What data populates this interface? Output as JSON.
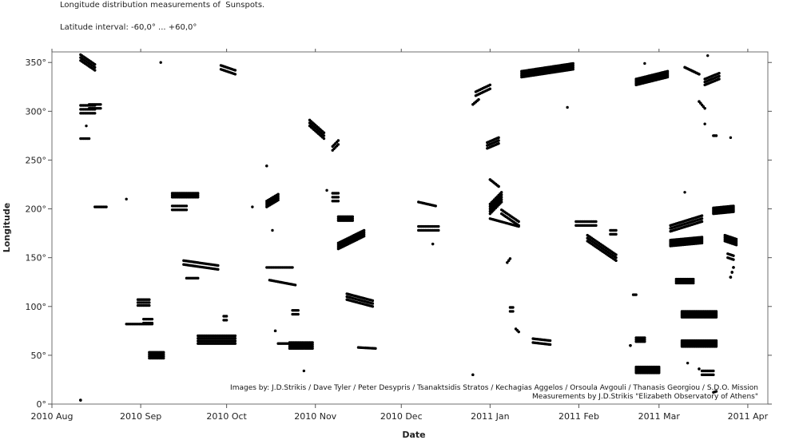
{
  "header": {
    "title": "Longitude distribution measurements of  Sunspots.",
    "subtitle": "Latitude interval: -60,0° ... +60,0°"
  },
  "credits": {
    "line1": "Images by: J.D.Strikis  /  Dave Tyler  /  Peter Desypris  /  Tsanaktsidis Stratos  /  Kechagias Aggelos  /  Orsoula Avgouli  /  Thanasis Georgiou  /  S.D.O. Mission",
    "line2": "Measurements by J.D.Strikis \"Elizabeth Observatory of Athens\""
  },
  "chart_data": {
    "type": "scatter",
    "title": "Longitude distribution measurements of  Sunspots.",
    "subtitle": "Latitude interval: -60,0° ... +60,0°",
    "xlabel": "Date",
    "ylabel": "Longitude",
    "xlim": [
      "2010-08-01",
      "2011-04-08"
    ],
    "ylim": [
      0,
      360
    ],
    "x_ticks": [
      {
        "date": "2010-08-01",
        "label": "2010 Aug"
      },
      {
        "date": "2010-09-01",
        "label": "2010 Sep"
      },
      {
        "date": "2010-10-01",
        "label": "2010 Oct"
      },
      {
        "date": "2010-11-01",
        "label": "2010 Nov"
      },
      {
        "date": "2010-12-01",
        "label": "2010 Dec"
      },
      {
        "date": "2011-01-01",
        "label": "2011 Jan"
      },
      {
        "date": "2011-02-01",
        "label": "2011 Feb"
      },
      {
        "date": "2011-03-01",
        "label": "2011 Mar"
      },
      {
        "date": "2011-04-01",
        "label": "2011 Apr"
      }
    ],
    "y_ticks": [
      {
        "value": 0,
        "label": "0°"
      },
      {
        "value": 50,
        "label": "50°"
      },
      {
        "value": 100,
        "label": "100°"
      },
      {
        "value": 150,
        "label": "150°"
      },
      {
        "value": 200,
        "label": "200°"
      },
      {
        "value": 250,
        "label": "250°"
      },
      {
        "value": 300,
        "label": "300°"
      },
      {
        "value": 350,
        "label": "350°"
      }
    ],
    "grid": false,
    "marker_color": "#000000",
    "groups": [
      {
        "start": "2010-08-11",
        "end": "2010-08-16",
        "from": 355,
        "to": 345,
        "rows": 3,
        "spread": 3
      },
      {
        "start": "2010-08-11",
        "end": "2010-08-16",
        "from": 302,
        "to": 302,
        "rows": 3,
        "spread": 4
      },
      {
        "start": "2010-08-14",
        "end": "2010-08-18",
        "from": 305,
        "to": 305,
        "rows": 2,
        "spread": 2
      },
      {
        "start": "2010-08-11",
        "end": "2010-08-14",
        "from": 272,
        "to": 272,
        "rows": 1,
        "spread": 0
      },
      {
        "start": "2010-08-13",
        "end": "2010-08-13",
        "from": 285,
        "to": 285,
        "rows": 1,
        "spread": 0
      },
      {
        "start": "2010-08-11",
        "end": "2010-08-11",
        "from": 4,
        "to": 19,
        "rows": 4,
        "spread": 0
      },
      {
        "start": "2010-08-16",
        "end": "2010-08-20",
        "from": 202,
        "to": 202,
        "rows": 1,
        "spread": 0
      },
      {
        "start": "2010-08-27",
        "end": "2010-08-27",
        "from": 210,
        "to": 210,
        "rows": 1,
        "spread": 0
      },
      {
        "start": "2010-08-27",
        "end": "2010-09-05",
        "from": 82,
        "to": 82,
        "rows": 1,
        "spread": 0
      },
      {
        "start": "2010-08-31",
        "end": "2010-09-04",
        "from": 104,
        "to": 104,
        "rows": 3,
        "spread": 3
      },
      {
        "start": "2010-09-02",
        "end": "2010-09-05",
        "from": 85,
        "to": 85,
        "rows": 2,
        "spread": 2
      },
      {
        "start": "2010-09-04",
        "end": "2010-09-09",
        "from": 50,
        "to": 50,
        "rows": 4,
        "spread": 3
      },
      {
        "start": "2010-09-08",
        "end": "2010-09-08",
        "from": 350,
        "to": 350,
        "rows": 1,
        "spread": 0
      },
      {
        "start": "2010-09-12",
        "end": "2010-09-21",
        "from": 214,
        "to": 214,
        "rows": 3,
        "spread": 2
      },
      {
        "start": "2010-09-12",
        "end": "2010-09-17",
        "from": 201,
        "to": 201,
        "rows": 2,
        "spread": 2
      },
      {
        "start": "2010-09-16",
        "end": "2010-09-28",
        "from": 145,
        "to": 140,
        "rows": 2,
        "spread": 2
      },
      {
        "start": "2010-09-17",
        "end": "2010-09-21",
        "from": 129,
        "to": 129,
        "rows": 1,
        "spread": 0
      },
      {
        "start": "2010-09-21",
        "end": "2010-10-04",
        "from": 66,
        "to": 66,
        "rows": 4,
        "spread": 4
      },
      {
        "start": "2010-09-30",
        "end": "2010-10-01",
        "from": 88,
        "to": 88,
        "rows": 2,
        "spread": 2
      },
      {
        "start": "2010-09-29",
        "end": "2010-10-04",
        "from": 345,
        "to": 340,
        "rows": 2,
        "spread": 2
      },
      {
        "start": "2010-10-10",
        "end": "2010-10-10",
        "from": 202,
        "to": 202,
        "rows": 1,
        "spread": 0
      },
      {
        "start": "2010-10-15",
        "end": "2010-10-19",
        "from": 205,
        "to": 212,
        "rows": 4,
        "spread": 3
      },
      {
        "start": "2010-10-15",
        "end": "2010-10-15",
        "from": 244,
        "to": 247,
        "rows": 2,
        "spread": 0
      },
      {
        "start": "2010-10-17",
        "end": "2010-10-17",
        "from": 178,
        "to": 178,
        "rows": 1,
        "spread": 0
      },
      {
        "start": "2010-10-15",
        "end": "2010-10-24",
        "from": 140,
        "to": 140,
        "rows": 1,
        "spread": 0
      },
      {
        "start": "2010-10-16",
        "end": "2010-10-25",
        "from": 127,
        "to": 122,
        "rows": 1,
        "spread": 0
      },
      {
        "start": "2010-10-18",
        "end": "2010-10-18",
        "from": 75,
        "to": 94,
        "rows": 2,
        "spread": 0
      },
      {
        "start": "2010-10-19",
        "end": "2010-10-23",
        "from": 62,
        "to": 62,
        "rows": 1,
        "spread": 0
      },
      {
        "start": "2010-10-24",
        "end": "2010-10-26",
        "from": 94,
        "to": 94,
        "rows": 2,
        "spread": 2
      },
      {
        "start": "2010-10-23",
        "end": "2010-10-31",
        "from": 60,
        "to": 60,
        "rows": 4,
        "spread": 3
      },
      {
        "start": "2010-10-28",
        "end": "2010-10-28",
        "from": 34,
        "to": 34,
        "rows": 1,
        "spread": 0
      },
      {
        "start": "2010-10-30",
        "end": "2010-11-04",
        "from": 288,
        "to": 275,
        "rows": 3,
        "spread": 3
      },
      {
        "start": "2010-11-05",
        "end": "2010-11-05",
        "from": 219,
        "to": 219,
        "rows": 1,
        "spread": 0
      },
      {
        "start": "2010-11-07",
        "end": "2010-11-09",
        "from": 262,
        "to": 268,
        "rows": 2,
        "spread": 2
      },
      {
        "start": "2010-11-07",
        "end": "2010-11-09",
        "from": 212,
        "to": 212,
        "rows": 3,
        "spread": 4
      },
      {
        "start": "2010-11-09",
        "end": "2010-11-14",
        "from": 190,
        "to": 190,
        "rows": 3,
        "spread": 2
      },
      {
        "start": "2010-11-09",
        "end": "2010-11-18",
        "from": 162,
        "to": 175,
        "rows": 4,
        "spread": 3
      },
      {
        "start": "2010-11-12",
        "end": "2010-11-21",
        "from": 110,
        "to": 103,
        "rows": 3,
        "spread": 3
      },
      {
        "start": "2010-11-16",
        "end": "2010-11-22",
        "from": 58,
        "to": 57,
        "rows": 1,
        "spread": 0
      },
      {
        "start": "2010-12-07",
        "end": "2010-12-13",
        "from": 207,
        "to": 203,
        "rows": 1,
        "spread": 0
      },
      {
        "start": "2010-12-07",
        "end": "2010-12-14",
        "from": 180,
        "to": 180,
        "rows": 2,
        "spread": 2
      },
      {
        "start": "2010-12-12",
        "end": "2010-12-12",
        "from": 164,
        "to": 168,
        "rows": 2,
        "spread": 0
      },
      {
        "start": "2010-12-26",
        "end": "2010-12-26",
        "from": 30,
        "to": 33,
        "rows": 2,
        "spread": 0
      },
      {
        "start": "2010-12-26",
        "end": "2010-12-28",
        "from": 307,
        "to": 312,
        "rows": 2,
        "spread": 0
      },
      {
        "start": "2010-12-27",
        "end": "2011-01-01",
        "from": 318,
        "to": 325,
        "rows": 2,
        "spread": 2
      },
      {
        "start": "2010-12-31",
        "end": "2011-01-04",
        "from": 265,
        "to": 270,
        "rows": 3,
        "spread": 3
      },
      {
        "start": "2011-01-01",
        "end": "2011-01-05",
        "from": 200,
        "to": 212,
        "rows": 5,
        "spread": 5
      },
      {
        "start": "2011-01-01",
        "end": "2011-01-04",
        "from": 230,
        "to": 223,
        "rows": 2,
        "spread": 0
      },
      {
        "start": "2011-01-01",
        "end": "2011-01-11",
        "from": 190,
        "to": 182,
        "rows": 1,
        "spread": 0
      },
      {
        "start": "2011-01-05",
        "end": "2011-01-11",
        "from": 197,
        "to": 185,
        "rows": 2,
        "spread": 2
      },
      {
        "start": "2011-01-07",
        "end": "2011-01-08",
        "from": 145,
        "to": 149,
        "rows": 2,
        "spread": 0
      },
      {
        "start": "2011-01-08",
        "end": "2011-01-09",
        "from": 97,
        "to": 97,
        "rows": 2,
        "spread": 2
      },
      {
        "start": "2011-01-10",
        "end": "2011-01-11",
        "from": 77,
        "to": 74,
        "rows": 2,
        "spread": 0
      },
      {
        "start": "2011-01-12",
        "end": "2011-01-30",
        "from": 338,
        "to": 346,
        "rows": 4,
        "spread": 3
      },
      {
        "start": "2011-01-16",
        "end": "2011-01-22",
        "from": 65,
        "to": 63,
        "rows": 2,
        "spread": 2
      },
      {
        "start": "2011-01-28",
        "end": "2011-01-28",
        "from": 304,
        "to": 304,
        "rows": 1,
        "spread": 0
      },
      {
        "start": "2011-01-31",
        "end": "2011-02-07",
        "from": 185,
        "to": 185,
        "rows": 2,
        "spread": 2
      },
      {
        "start": "2011-02-04",
        "end": "2011-02-14",
        "from": 170,
        "to": 150,
        "rows": 3,
        "spread": 3
      },
      {
        "start": "2011-02-12",
        "end": "2011-02-14",
        "from": 176,
        "to": 176,
        "rows": 2,
        "spread": 2
      },
      {
        "start": "2011-02-19",
        "end": "2011-02-19",
        "from": 60,
        "to": 77,
        "rows": 3,
        "spread": 0
      },
      {
        "start": "2011-02-20",
        "end": "2011-02-21",
        "from": 112,
        "to": 112,
        "rows": 1,
        "spread": 0
      },
      {
        "start": "2011-02-21",
        "end": "2011-02-24",
        "from": 66,
        "to": 66,
        "rows": 3,
        "spread": 2
      },
      {
        "start": "2011-02-21",
        "end": "2011-03-01",
        "from": 35,
        "to": 35,
        "rows": 5,
        "spread": 3
      },
      {
        "start": "2011-02-21",
        "end": "2011-03-04",
        "from": 330,
        "to": 338,
        "rows": 5,
        "spread": 3
      },
      {
        "start": "2011-02-24",
        "end": "2011-02-24",
        "from": 349,
        "to": 349,
        "rows": 1,
        "spread": 0
      },
      {
        "start": "2011-03-05",
        "end": "2011-03-16",
        "from": 180,
        "to": 190,
        "rows": 3,
        "spread": 3
      },
      {
        "start": "2011-03-05",
        "end": "2011-03-16",
        "from": 165,
        "to": 168,
        "rows": 5,
        "spread": 3
      },
      {
        "start": "2011-03-07",
        "end": "2011-03-13",
        "from": 126,
        "to": 126,
        "rows": 3,
        "spread": 2
      },
      {
        "start": "2011-03-10",
        "end": "2011-03-10",
        "from": 217,
        "to": 217,
        "rows": 1,
        "spread": 0
      },
      {
        "start": "2011-03-09",
        "end": "2011-03-21",
        "from": 92,
        "to": 92,
        "rows": 6,
        "spread": 3
      },
      {
        "start": "2011-03-09",
        "end": "2011-03-21",
        "from": 62,
        "to": 62,
        "rows": 6,
        "spread": 3
      },
      {
        "start": "2011-03-11",
        "end": "2011-03-11",
        "from": 42,
        "to": 42,
        "rows": 1,
        "spread": 0
      },
      {
        "start": "2011-03-16",
        "end": "2011-03-20",
        "from": 32,
        "to": 32,
        "rows": 2,
        "spread": 2
      },
      {
        "start": "2011-03-15",
        "end": "2011-03-15",
        "from": 36,
        "to": 30,
        "rows": 2,
        "spread": 0
      },
      {
        "start": "2011-03-10",
        "end": "2011-03-15",
        "from": 345,
        "to": 338,
        "rows": 2,
        "spread": 0
      },
      {
        "start": "2011-03-15",
        "end": "2011-03-17",
        "from": 310,
        "to": 303,
        "rows": 2,
        "spread": 0
      },
      {
        "start": "2011-03-17",
        "end": "2011-03-17",
        "from": 287,
        "to": 287,
        "rows": 1,
        "spread": 0
      },
      {
        "start": "2011-03-18",
        "end": "2011-03-18",
        "from": 357,
        "to": 357,
        "rows": 1,
        "spread": 0
      },
      {
        "start": "2011-03-17",
        "end": "2011-03-22",
        "from": 330,
        "to": 336,
        "rows": 3,
        "spread": 3
      },
      {
        "start": "2011-03-20",
        "end": "2011-03-21",
        "from": 275,
        "to": 275,
        "rows": 2,
        "spread": 0
      },
      {
        "start": "2011-03-20",
        "end": "2011-03-21",
        "from": 12,
        "to": 13,
        "rows": 1,
        "spread": 0
      },
      {
        "start": "2011-03-26",
        "end": "2011-03-26",
        "from": 273,
        "to": 273,
        "rows": 1,
        "spread": 0
      },
      {
        "start": "2011-03-20",
        "end": "2011-03-27",
        "from": 198,
        "to": 200,
        "rows": 6,
        "spread": 3
      },
      {
        "start": "2011-03-24",
        "end": "2011-03-28",
        "from": 170,
        "to": 166,
        "rows": 4,
        "spread": 3
      },
      {
        "start": "2011-03-25",
        "end": "2011-03-27",
        "from": 152,
        "to": 150,
        "rows": 2,
        "spread": 2
      },
      {
        "start": "2011-03-26",
        "end": "2011-03-27",
        "from": 130,
        "to": 140,
        "rows": 4,
        "spread": 0
      }
    ]
  }
}
